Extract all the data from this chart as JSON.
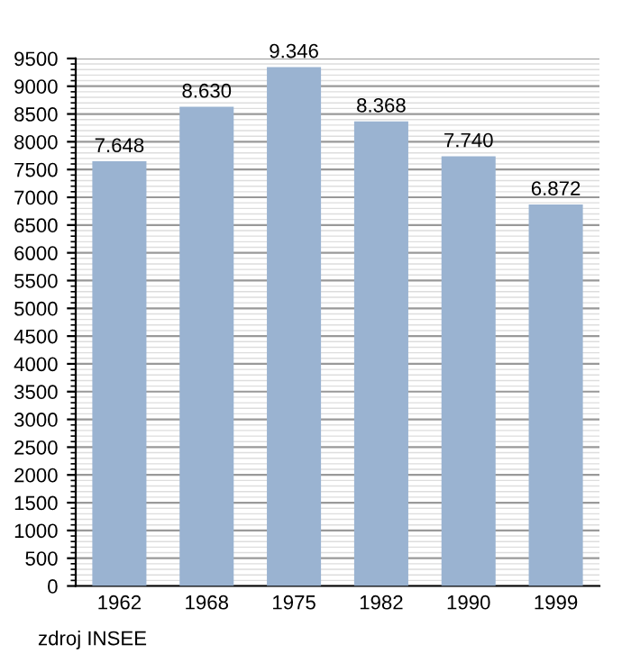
{
  "chart_data": {
    "type": "bar",
    "categories": [
      "1962",
      "1968",
      "1975",
      "1982",
      "1990",
      "1999"
    ],
    "values": [
      7648,
      8630,
      9346,
      8368,
      7740,
      6872
    ],
    "value_labels": [
      "7.648",
      "8.630",
      "9.346",
      "8.368",
      "7.740",
      "6.872"
    ],
    "color": "#9ab3d1",
    "ylim": [
      0,
      9500
    ],
    "yticks": [
      0,
      500,
      1000,
      1500,
      2000,
      2500,
      3000,
      3500,
      4000,
      4500,
      5000,
      5500,
      6000,
      6500,
      7000,
      7500,
      8000,
      8500,
      9000,
      9500
    ],
    "grid": "y",
    "annotations": [
      "zdroj INSEE"
    ]
  }
}
